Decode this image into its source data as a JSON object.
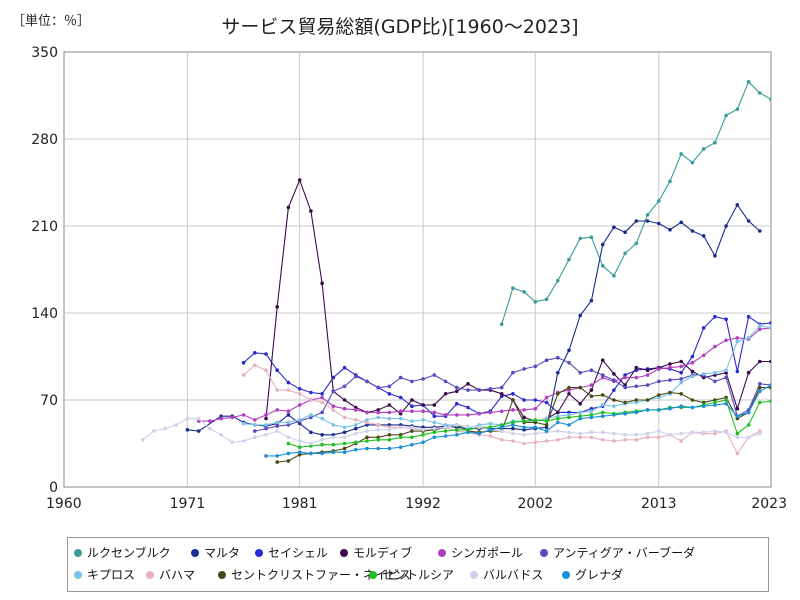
{
  "chart_data": {
    "type": "line",
    "unit_label": "［単位：％］",
    "title": "サービス貿易総額(GDP比)[1960～2023]",
    "xlim": [
      1960,
      2023
    ],
    "ylim": [
      0,
      350
    ],
    "xticks": [
      "1960",
      "1971",
      "1981",
      "1992",
      "2002",
      "2013",
      "2023"
    ],
    "yticks": [
      "0",
      "70",
      "140",
      "210",
      "280",
      "350"
    ],
    "grid": true,
    "legend_position": "bottom",
    "series": [
      {
        "name": "ルクセンブルク",
        "color": "#3a9a9a",
        "x": [
          1999,
          2000,
          2001,
          2002,
          2003,
          2004,
          2005,
          2006,
          2007,
          2008,
          2009,
          2010,
          2011,
          2012,
          2013,
          2014,
          2015,
          2016,
          2017,
          2018,
          2019,
          2020,
          2021,
          2022,
          2023
        ],
        "y": [
          131,
          160,
          157,
          149,
          151,
          166,
          183,
          200,
          201,
          178,
          170,
          188,
          196,
          219,
          230,
          246,
          268,
          261,
          272,
          277,
          299,
          304,
          326,
          317,
          312
        ]
      },
      {
        "name": "マルタ",
        "color": "#1a2c8c",
        "x": [
          1971,
          1972,
          1974,
          1975,
          1976,
          1977,
          1978,
          1979,
          1980,
          1981,
          1982,
          1983,
          1984,
          1985,
          1986,
          1987,
          1988,
          1989,
          1990,
          1991,
          1992,
          1993,
          1994,
          1995,
          1996,
          1997,
          1998,
          1999,
          2000,
          2001,
          2002,
          2003,
          2004,
          2005,
          2006,
          2007,
          2008,
          2009,
          2010,
          2011,
          2012,
          2013,
          2014,
          2015,
          2016,
          2017,
          2018,
          2019,
          2020,
          2021,
          2022
        ],
        "y": [
          46,
          45,
          57,
          57,
          52,
          50,
          49,
          51,
          58,
          51,
          44,
          42,
          42,
          44,
          47,
          50,
          50,
          50,
          50,
          49,
          48,
          48,
          49,
          48,
          47,
          47,
          47,
          47,
          47,
          46,
          47,
          48,
          92,
          110,
          138,
          150,
          195,
          209,
          205,
          214,
          214,
          212,
          207,
          213,
          206,
          202,
          186,
          210,
          227,
          214,
          206
        ]
      },
      {
        "name": "セイシェル",
        "color": "#2a2ad0",
        "x": [
          1976,
          1977,
          1978,
          1979,
          1980,
          1981,
          1982,
          1983,
          1984,
          1985,
          1986,
          1987,
          1988,
          1989,
          1990,
          1991,
          1992,
          1993,
          1994,
          1995,
          1996,
          1997,
          1998,
          1999,
          2000,
          2001,
          2002,
          2003,
          2004,
          2005,
          2006,
          2007,
          2008,
          2009,
          2010,
          2011,
          2012,
          2013,
          2014,
          2015,
          2016,
          2017,
          2018,
          2019,
          2020,
          2021,
          2022,
          2023
        ],
        "y": [
          100,
          108,
          107,
          94,
          84,
          79,
          76,
          75,
          88,
          96,
          90,
          85,
          80,
          75,
          72,
          65,
          66,
          57,
          57,
          67,
          64,
          59,
          61,
          73,
          75,
          70,
          70,
          68,
          60,
          60,
          60,
          63,
          65,
          78,
          90,
          94,
          95,
          96,
          95,
          92,
          105,
          128,
          137,
          135,
          93,
          137,
          131,
          132
        ]
      },
      {
        "name": "モルディブ",
        "color": "#3a0a4a",
        "x": [
          1978,
          1979,
          1980,
          1981,
          1982,
          1983,
          1984,
          1985,
          1986,
          1987,
          1988,
          1989,
          1990,
          1991,
          1992,
          1993,
          1994,
          1995,
          1996,
          1997,
          1998,
          1999,
          2000,
          2001,
          2002,
          2003,
          2004,
          2005,
          2006,
          2007,
          2008,
          2009,
          2010,
          2011,
          2012,
          2013,
          2014,
          2015,
          2016,
          2017,
          2018,
          2019,
          2020,
          2021,
          2022,
          2023
        ],
        "y": [
          55,
          145,
          225,
          247,
          222,
          164,
          77,
          70,
          64,
          60,
          62,
          66,
          59,
          70,
          66,
          66,
          75,
          77,
          83,
          78,
          78,
          75,
          70,
          56,
          53,
          55,
          60,
          75,
          67,
          78,
          102,
          91,
          82,
          96,
          94,
          96,
          99,
          101,
          93,
          88,
          90,
          92,
          63,
          92,
          101,
          101
        ]
      },
      {
        "name": "シンガポール",
        "color": "#b040c0",
        "x": [
          1972,
          1973,
          1974,
          1975,
          1976,
          1977,
          1978,
          1979,
          1980,
          1981,
          1982,
          1983,
          1984,
          1985,
          1986,
          1987,
          1988,
          1989,
          1990,
          1991,
          1992,
          1993,
          1994,
          1995,
          1996,
          1997,
          1998,
          1999,
          2000,
          2001,
          2002,
          2003,
          2004,
          2005,
          2006,
          2007,
          2008,
          2009,
          2010,
          2011,
          2012,
          2013,
          2014,
          2015,
          2016,
          2017,
          2018,
          2019,
          2020,
          2021,
          2022,
          2023
        ],
        "y": [
          53,
          53,
          55,
          56,
          58,
          54,
          58,
          62,
          61,
          66,
          70,
          72,
          65,
          63,
          62,
          60,
          60,
          60,
          61,
          61,
          61,
          60,
          58,
          58,
          58,
          59,
          60,
          61,
          62,
          62,
          63,
          72,
          76,
          78,
          80,
          82,
          88,
          85,
          88,
          88,
          90,
          95,
          96,
          97,
          100,
          106,
          113,
          118,
          120,
          119,
          127,
          128
        ]
      },
      {
        "name": "アンティグア・バーブーダ",
        "color": "#5a4ac0",
        "x": [
          1977,
          1978,
          1979,
          1980,
          1981,
          1982,
          1983,
          1984,
          1985,
          1986,
          1987,
          1988,
          1989,
          1990,
          1991,
          1992,
          1993,
          1994,
          1995,
          1996,
          1997,
          1998,
          1999,
          2000,
          2001,
          2002,
          2003,
          2004,
          2005,
          2006,
          2007,
          2008,
          2009,
          2010,
          2011,
          2012,
          2013,
          2014,
          2015,
          2016,
          2017,
          2018,
          2019,
          2020,
          2021,
          2022,
          2023
        ],
        "y": [
          45,
          47,
          49,
          50,
          53,
          56,
          60,
          77,
          81,
          89,
          85,
          80,
          81,
          88,
          85,
          87,
          90,
          85,
          80,
          78,
          78,
          79,
          80,
          92,
          95,
          97,
          102,
          104,
          100,
          92,
          94,
          90,
          86,
          80,
          81,
          82,
          85,
          86,
          87,
          90,
          90,
          85,
          88,
          57,
          62,
          83,
          82
        ]
      },
      {
        "name": "キプロス",
        "color": "#7ac4e4",
        "x": [
          1976,
          1977,
          1978,
          1979,
          1980,
          1981,
          1982,
          1983,
          1984,
          1985,
          1986,
          1987,
          1988,
          1989,
          1990,
          1991,
          1992,
          1993,
          1994,
          1995,
          1996,
          1997,
          1998,
          1999,
          2000,
          2001,
          2002,
          2003,
          2004,
          2005,
          2006,
          2007,
          2008,
          2009,
          2010,
          2011,
          2012,
          2013,
          2014,
          2015,
          2016,
          2017,
          2018,
          2019,
          2020,
          2021,
          2022,
          2023
        ],
        "y": [
          51,
          50,
          50,
          52,
          52,
          54,
          58,
          55,
          50,
          48,
          50,
          54,
          56,
          55,
          55,
          53,
          54,
          52,
          50,
          50,
          47,
          50,
          51,
          50,
          53,
          53,
          53,
          55,
          57,
          58,
          60,
          61,
          66,
          65,
          67,
          68,
          70,
          72,
          75,
          84,
          89,
          91,
          92,
          94,
          117,
          120,
          130,
          128
        ]
      },
      {
        "name": "バハマ",
        "color": "#e8b0c0",
        "x": [
          1976,
          1977,
          1978,
          1979,
          1980,
          1981,
          1982,
          1983,
          1984,
          1985,
          1986,
          1987,
          1988,
          1989,
          1990,
          1991,
          1992,
          1993,
          1994,
          1995,
          1996,
          1997,
          1998,
          1999,
          2000,
          2001,
          2002,
          2003,
          2004,
          2005,
          2006,
          2007,
          2008,
          2009,
          2010,
          2011,
          2012,
          2013,
          2014,
          2015,
          2016,
          2017,
          2018,
          2019,
          2020,
          2021,
          2022
        ],
        "y": [
          90,
          98,
          94,
          78,
          78,
          75,
          70,
          68,
          62,
          56,
          54,
          52,
          50,
          48,
          48,
          47,
          46,
          46,
          48,
          45,
          44,
          42,
          41,
          38,
          37,
          35,
          36,
          37,
          38,
          40,
          40,
          40,
          38,
          37,
          38,
          38,
          40,
          40,
          42,
          37,
          44,
          43,
          43,
          45,
          27,
          40,
          45
        ]
      },
      {
        "name": "セントクリストファー・ネイビス",
        "color": "#4a4a18",
        "x": [
          1979,
          1980,
          1981,
          1982,
          1983,
          1984,
          1985,
          1986,
          1987,
          1988,
          1989,
          1990,
          1991,
          1992,
          1993,
          1994,
          1995,
          1996,
          1997,
          1998,
          1999,
          2000,
          2001,
          2002,
          2003,
          2004,
          2005,
          2006,
          2007,
          2008,
          2009,
          2010,
          2011,
          2012,
          2013,
          2014,
          2015,
          2016,
          2017,
          2018,
          2019,
          2020,
          2021,
          2022,
          2023
        ],
        "y": [
          20,
          21,
          26,
          27,
          28,
          29,
          31,
          35,
          40,
          40,
          42,
          42,
          45,
          45,
          46,
          48,
          50,
          45,
          44,
          45,
          45,
          70,
          52,
          52,
          50,
          75,
          80,
          80,
          73,
          74,
          70,
          68,
          70,
          70,
          74,
          76,
          75,
          70,
          68,
          70,
          72,
          55,
          60,
          80,
          80
        ]
      },
      {
        "name": "セントルシア",
        "color": "#20c020",
        "x": [
          1980,
          1981,
          1982,
          1983,
          1984,
          1985,
          1986,
          1987,
          1988,
          1989,
          1990,
          1991,
          1992,
          1993,
          1994,
          1995,
          1996,
          1997,
          1998,
          1999,
          2000,
          2001,
          2002,
          2003,
          2004,
          2005,
          2006,
          2007,
          2008,
          2009,
          2010,
          2011,
          2012,
          2013,
          2014,
          2015,
          2016,
          2017,
          2018,
          2019,
          2020,
          2021,
          2022,
          2023
        ],
        "y": [
          35,
          32,
          33,
          34,
          34,
          35,
          36,
          37,
          38,
          38,
          40,
          40,
          42,
          44,
          45,
          46,
          46,
          48,
          48,
          50,
          52,
          53,
          54,
          53,
          55,
          56,
          57,
          58,
          60,
          59,
          60,
          61,
          62,
          62,
          64,
          64,
          64,
          66,
          68,
          70,
          43,
          50,
          68,
          69
        ]
      },
      {
        "name": "バルバドス",
        "color": "#d0d0ee",
        "x": [
          1967,
          1968,
          1969,
          1970,
          1971,
          1972,
          1973,
          1974,
          1975,
          1976,
          1977,
          1978,
          1979,
          1980,
          1981,
          1982,
          1983,
          1984,
          1985,
          1986,
          1987,
          1988,
          1989,
          1990,
          1991,
          1992,
          1993,
          1994,
          1995,
          1996,
          1997,
          1998,
          1999,
          2000,
          2001,
          2002,
          2003,
          2004,
          2005,
          2006,
          2007,
          2008,
          2009,
          2010,
          2011,
          2012,
          2013,
          2014,
          2015,
          2016,
          2017,
          2018,
          2019,
          2020,
          2021,
          2022
        ],
        "y": [
          38,
          45,
          47,
          50,
          55,
          55,
          47,
          42,
          36,
          37,
          40,
          42,
          45,
          40,
          37,
          35,
          38,
          40,
          40,
          43,
          45,
          46,
          46,
          48,
          48,
          46,
          47,
          48,
          50,
          49,
          48,
          46,
          45,
          43,
          42,
          43,
          44,
          45,
          44,
          43,
          44,
          44,
          43,
          42,
          42,
          43,
          45,
          42,
          43,
          44,
          44,
          45,
          44,
          40,
          40,
          43
        ]
      },
      {
        "name": "グレナダ",
        "color": "#1890d8",
        "x": [
          1978,
          1979,
          1980,
          1981,
          1982,
          1983,
          1984,
          1985,
          1986,
          1987,
          1988,
          1989,
          1990,
          1991,
          1992,
          1993,
          1994,
          1995,
          1996,
          1997,
          1998,
          1999,
          2000,
          2001,
          2002,
          2003,
          2004,
          2005,
          2006,
          2007,
          2008,
          2009,
          2010,
          2011,
          2012,
          2013,
          2014,
          2015,
          2016,
          2017,
          2018,
          2019,
          2020,
          2021,
          2022,
          2023
        ],
        "y": [
          25,
          25,
          27,
          28,
          27,
          27,
          28,
          28,
          30,
          31,
          31,
          31,
          32,
          34,
          36,
          40,
          41,
          42,
          44,
          43,
          46,
          48,
          50,
          48,
          48,
          45,
          52,
          50,
          55,
          56,
          57,
          58,
          59,
          60,
          62,
          62,
          63,
          65,
          64,
          65,
          66,
          67,
          57,
          60,
          77,
          82
        ]
      }
    ]
  }
}
